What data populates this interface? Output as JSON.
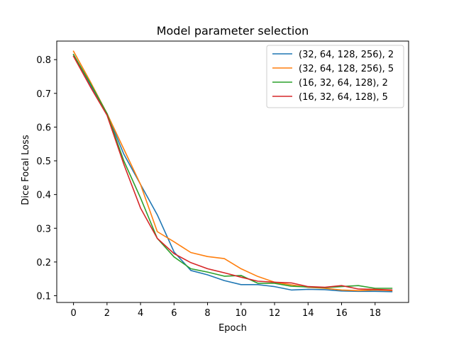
{
  "chart_data": {
    "type": "line",
    "title": "Model parameter selection",
    "xlabel": "Epoch",
    "ylabel": "Dice Focal Loss",
    "xlim": [
      -1.0,
      20.0
    ],
    "ylim": [
      0.08,
      0.855
    ],
    "xticks": [
      0,
      2,
      4,
      6,
      8,
      10,
      12,
      14,
      16,
      18
    ],
    "yticks": [
      0.1,
      0.2,
      0.3,
      0.4,
      0.5,
      0.6,
      0.7,
      0.8
    ],
    "ytick_labels": [
      "0.1",
      "0.2",
      "0.3",
      "0.4",
      "0.5",
      "0.6",
      "0.7",
      "0.8"
    ],
    "grid": false,
    "legend_position": "top-right",
    "x": [
      0,
      1,
      2,
      3,
      4,
      5,
      6,
      7,
      8,
      9,
      10,
      11,
      12,
      13,
      14,
      15,
      16,
      17,
      18,
      19
    ],
    "series": [
      {
        "name": "(32, 64, 128, 256), 2",
        "color": "#1f77b4",
        "values": [
          0.815,
          0.725,
          0.64,
          0.52,
          0.43,
          0.34,
          0.23,
          0.175,
          0.162,
          0.145,
          0.133,
          0.133,
          0.127,
          0.117,
          0.119,
          0.118,
          0.114,
          0.113,
          0.113,
          0.112
        ]
      },
      {
        "name": "(32, 64, 128, 256), 5",
        "color": "#ff7f0e",
        "values": [
          0.825,
          0.735,
          0.64,
          0.535,
          0.43,
          0.29,
          0.26,
          0.228,
          0.216,
          0.21,
          0.18,
          0.157,
          0.14,
          0.132,
          0.125,
          0.122,
          0.117,
          0.115,
          0.117,
          0.115
        ]
      },
      {
        "name": "(16, 32, 64, 128), 2",
        "color": "#2ca02c",
        "values": [
          0.815,
          0.73,
          0.64,
          0.5,
          0.39,
          0.27,
          0.215,
          0.18,
          0.17,
          0.158,
          0.16,
          0.137,
          0.137,
          0.128,
          0.126,
          0.124,
          0.127,
          0.13,
          0.122,
          0.122
        ]
      },
      {
        "name": "(16, 32, 64, 128), 5",
        "color": "#d62728",
        "values": [
          0.81,
          0.72,
          0.635,
          0.49,
          0.36,
          0.27,
          0.225,
          0.198,
          0.18,
          0.168,
          0.155,
          0.143,
          0.14,
          0.138,
          0.127,
          0.125,
          0.13,
          0.12,
          0.119,
          0.117
        ]
      }
    ]
  }
}
